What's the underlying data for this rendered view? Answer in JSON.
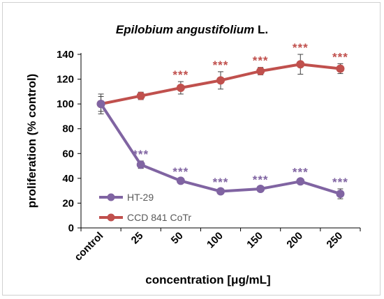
{
  "chart_data": {
    "type": "line",
    "title_italic": "Epilobium angustifolium",
    "title_suffix": " L.",
    "xlabel": "concentration [μg/mL]",
    "ylabel": "proliferation (% control)",
    "categories": [
      "control",
      "25",
      "50",
      "100",
      "150",
      "200",
      "250"
    ],
    "ylim": [
      0,
      140
    ],
    "yticks": [
      0,
      20,
      40,
      60,
      80,
      100,
      120,
      140
    ],
    "grid": false,
    "legend_position": "bottom-left",
    "series": [
      {
        "name": "HT-29",
        "color": "#8064a2",
        "values": [
          100,
          51,
          38,
          29.5,
          31.5,
          37.5,
          27.5
        ],
        "errors": [
          8,
          3,
          2,
          2,
          2,
          2,
          4
        ],
        "significance": [
          "",
          "***",
          "***",
          "***",
          "***",
          "***",
          "***"
        ]
      },
      {
        "name": "CCD 841 CoTr",
        "color": "#c0504d",
        "values": [
          100,
          106.5,
          113,
          119,
          126.5,
          132,
          128.5
        ],
        "errors": [
          6,
          3,
          5,
          7,
          3,
          8,
          4
        ],
        "significance": [
          "",
          "",
          "***",
          "***",
          "***",
          "***",
          "***"
        ]
      }
    ]
  }
}
